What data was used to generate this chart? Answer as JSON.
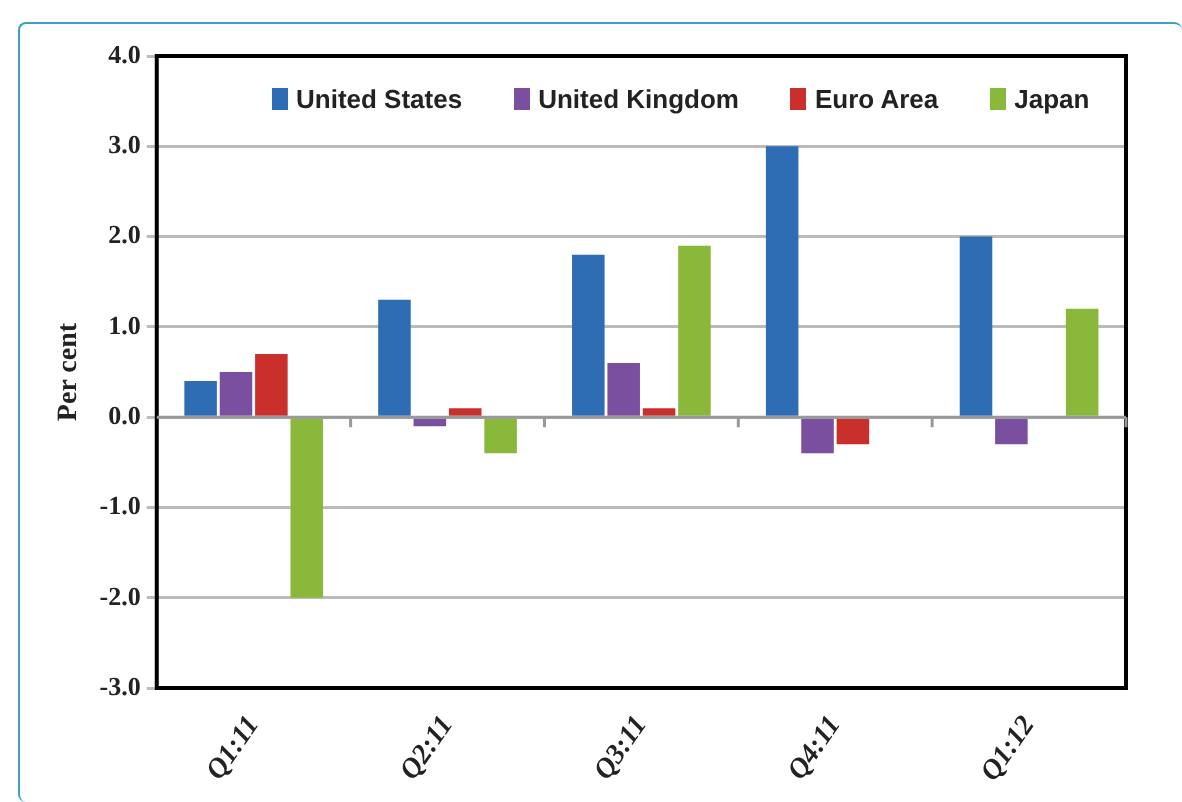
{
  "chart_data": {
    "type": "bar",
    "ylabel": "Per cent",
    "categories": [
      "Q1:11",
      "Q2:11",
      "Q3:11",
      "Q4:11",
      "Q1:12"
    ],
    "series": [
      {
        "name": "United States",
        "color": "#2e6db4",
        "values": [
          0.4,
          1.3,
          1.8,
          3.0,
          2.0
        ]
      },
      {
        "name": "United Kingdom",
        "color": "#7a4fa0",
        "values": [
          0.5,
          -0.1,
          0.6,
          -0.4,
          -0.3
        ]
      },
      {
        "name": "Euro Area",
        "color": "#c9302c",
        "values": [
          0.7,
          0.1,
          0.1,
          -0.3,
          null
        ]
      },
      {
        "name": "Japan",
        "color": "#8ab83a",
        "values": [
          -2.0,
          -0.4,
          1.9,
          null,
          1.2
        ]
      }
    ],
    "ylim": [
      -3.0,
      4.0
    ],
    "yticks": [
      {
        "value": -3,
        "label": "-3.0"
      },
      {
        "value": -2,
        "label": "-2.0"
      },
      {
        "value": -1,
        "label": "-1.0"
      },
      {
        "value": 0,
        "label": "0.0"
      },
      {
        "value": 1,
        "label": "1.0"
      },
      {
        "value": 2,
        "label": "2.0"
      },
      {
        "value": 3,
        "label": "3.0"
      },
      {
        "value": 4,
        "label": "4.0"
      }
    ],
    "grid": "y",
    "legend": "top"
  }
}
